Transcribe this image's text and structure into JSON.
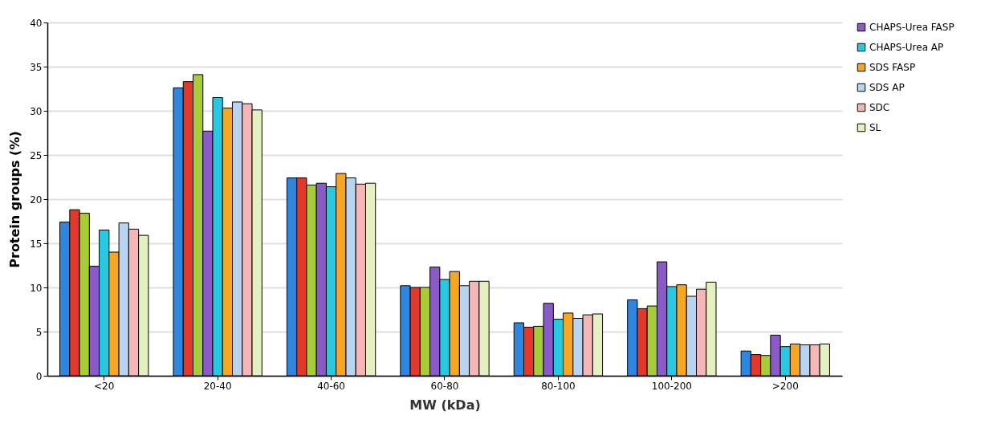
{
  "chart_data": {
    "type": "bar",
    "xlabel": "MW (kDa)",
    "ylabel": "Protein groups (%)",
    "categories": [
      "<20",
      "20-40",
      "40-60",
      "60-80",
      "80-100",
      "100-200",
      ">200"
    ],
    "ylim": [
      0,
      40
    ],
    "yticks": [
      0,
      5,
      10,
      15,
      20,
      25,
      30,
      35,
      40
    ],
    "grid": "y",
    "legend": "right",
    "series": [
      {
        "color": "#2e86de",
        "values": [
          17.4,
          32.6,
          22.4,
          10.2,
          6.0,
          8.6,
          2.8
        ]
      },
      {
        "color": "#e0392b",
        "values": [
          18.8,
          33.3,
          22.4,
          10.0,
          5.5,
          7.6,
          2.4
        ]
      },
      {
        "color": "#a8cc38",
        "values": [
          18.4,
          34.1,
          21.6,
          10.0,
          5.6,
          7.9,
          2.3
        ]
      },
      {
        "name": "CHAPS-Urea FASP",
        "color": "#8a5ac8",
        "values": [
          12.4,
          27.7,
          21.8,
          12.3,
          8.2,
          12.9,
          4.6
        ]
      },
      {
        "name": "CHAPS-Urea AP",
        "color": "#28c8e0",
        "values": [
          16.5,
          31.5,
          21.4,
          10.9,
          6.4,
          10.1,
          3.3
        ]
      },
      {
        "name": "SDS FASP",
        "color": "#f5a623",
        "values": [
          14.0,
          30.3,
          22.9,
          11.8,
          7.1,
          10.3,
          3.6
        ]
      },
      {
        "name": "SDS AP",
        "color": "#b8d4f0",
        "values": [
          17.3,
          31.0,
          22.4,
          10.2,
          6.5,
          9.0,
          3.5
        ]
      },
      {
        "name": "SDC",
        "color": "#f4b6b6",
        "values": [
          16.6,
          30.8,
          21.7,
          10.7,
          6.9,
          9.8,
          3.5
        ]
      },
      {
        "name": "SL",
        "color": "#e4f0c0",
        "values": [
          15.9,
          30.1,
          21.8,
          10.7,
          7.0,
          10.6,
          3.6
        ]
      }
    ]
  }
}
